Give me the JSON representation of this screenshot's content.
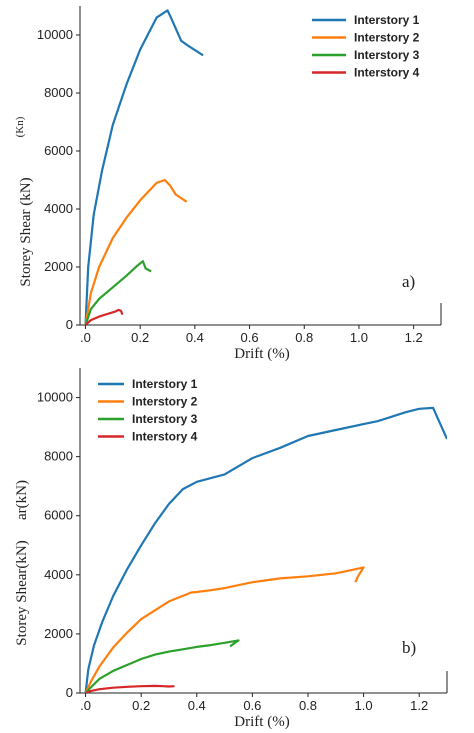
{
  "colors": {
    "Interstory 1": "#1f77b4",
    "Interstory 2": "#ff7f0e",
    "Interstory 3": "#2ca02c",
    "Interstory 4": "#d62728"
  },
  "chart_data": [
    {
      "type": "line",
      "panel_label": "a)",
      "xlabel": "Drift (%)",
      "ylabel": "Storey Shear (kN)",
      "stray_label": "(Kn)",
      "xlim": [
        -0.02,
        1.3
      ],
      "ylim": [
        0,
        11000
      ],
      "xticks": [
        0.0,
        0.2,
        0.4,
        0.6,
        0.8,
        1.0,
        1.2
      ],
      "xtick_labels": [
        ".0",
        "0.2",
        "0.4",
        "0.6",
        "0.8",
        "1.0",
        "1.2"
      ],
      "yticks": [
        0,
        2000,
        4000,
        6000,
        8000,
        10000
      ],
      "ytick_labels": [
        "0",
        "2000",
        "4000",
        "6000",
        "8000",
        "10000"
      ],
      "legend_position": "top-right",
      "series": [
        {
          "name": "Interstory 1",
          "x": [
            0.0,
            0.01,
            0.03,
            0.06,
            0.1,
            0.15,
            0.2,
            0.26,
            0.3,
            0.31,
            0.35,
            0.38,
            0.43
          ],
          "y": [
            0,
            2000,
            3800,
            5300,
            6900,
            8300,
            9500,
            10600,
            10850,
            10650,
            9800,
            9600,
            9300
          ]
        },
        {
          "name": "Interstory 2",
          "x": [
            0.0,
            0.02,
            0.05,
            0.1,
            0.15,
            0.2,
            0.26,
            0.29,
            0.31,
            0.33,
            0.37
          ],
          "y": [
            0,
            1100,
            2000,
            3000,
            3700,
            4300,
            4900,
            5000,
            4800,
            4500,
            4250
          ]
        },
        {
          "name": "Interstory 3",
          "x": [
            0.0,
            0.02,
            0.05,
            0.1,
            0.15,
            0.19,
            0.21,
            0.22,
            0.24
          ],
          "y": [
            0,
            550,
            900,
            1300,
            1700,
            2050,
            2200,
            1950,
            1850
          ]
        },
        {
          "name": "Interstory 4",
          "x": [
            0.0,
            0.02,
            0.05,
            0.08,
            0.11,
            0.12,
            0.13,
            0.135
          ],
          "y": [
            0,
            170,
            290,
            380,
            470,
            520,
            490,
            360
          ]
        }
      ]
    },
    {
      "type": "line",
      "panel_label": "b)",
      "xlabel": "Drift (%)",
      "ylabel": "Storey Shear(kN)",
      "stray_label": "ar(kN)",
      "xlim": [
        -0.02,
        1.3
      ],
      "ylim": [
        0,
        11000
      ],
      "xticks": [
        0.0,
        0.2,
        0.4,
        0.6,
        0.8,
        1.0,
        1.2
      ],
      "xtick_labels": [
        ".0",
        "0.2",
        "0.4",
        "0.6",
        "0.8",
        "1.0",
        "1.2"
      ],
      "yticks": [
        0,
        2000,
        4000,
        6000,
        8000,
        10000
      ],
      "ytick_labels": [
        "0",
        "2000",
        "4000",
        "6000",
        "8000",
        "10000"
      ],
      "legend_position": "top-left",
      "series": [
        {
          "name": "Interstory 1",
          "x": [
            0.0,
            0.01,
            0.03,
            0.06,
            0.1,
            0.15,
            0.2,
            0.25,
            0.3,
            0.35,
            0.4,
            0.5,
            0.6,
            0.7,
            0.8,
            0.9,
            1.0,
            1.05,
            1.1,
            1.15,
            1.2,
            1.25,
            1.3
          ],
          "y": [
            0,
            800,
            1600,
            2400,
            3300,
            4200,
            5000,
            5750,
            6400,
            6900,
            7150,
            7400,
            7950,
            8300,
            8700,
            8900,
            9100,
            9200,
            9350,
            9500,
            9620,
            9650,
            8600
          ]
        },
        {
          "name": "Interstory 2",
          "x": [
            0.0,
            0.02,
            0.05,
            0.1,
            0.15,
            0.2,
            0.3,
            0.38,
            0.4,
            0.45,
            0.5,
            0.6,
            0.7,
            0.8,
            0.9,
            0.95,
            1.0,
            0.98,
            0.97
          ],
          "y": [
            0,
            400,
            900,
            1550,
            2050,
            2500,
            3100,
            3400,
            3420,
            3480,
            3550,
            3750,
            3880,
            3950,
            4050,
            4150,
            4250,
            3950,
            3750
          ]
        },
        {
          "name": "Interstory 3",
          "x": [
            0.0,
            0.02,
            0.05,
            0.1,
            0.15,
            0.2,
            0.25,
            0.3,
            0.35,
            0.4,
            0.45,
            0.5,
            0.55,
            0.52
          ],
          "y": [
            0,
            200,
            480,
            750,
            950,
            1150,
            1300,
            1400,
            1480,
            1560,
            1620,
            1700,
            1780,
            1580
          ]
        },
        {
          "name": "Interstory 4",
          "x": [
            0.0,
            0.02,
            0.05,
            0.1,
            0.15,
            0.2,
            0.25,
            0.28,
            0.3,
            0.32
          ],
          "y": [
            0,
            70,
            130,
            180,
            210,
            230,
            240,
            230,
            220,
            230
          ]
        }
      ]
    }
  ]
}
